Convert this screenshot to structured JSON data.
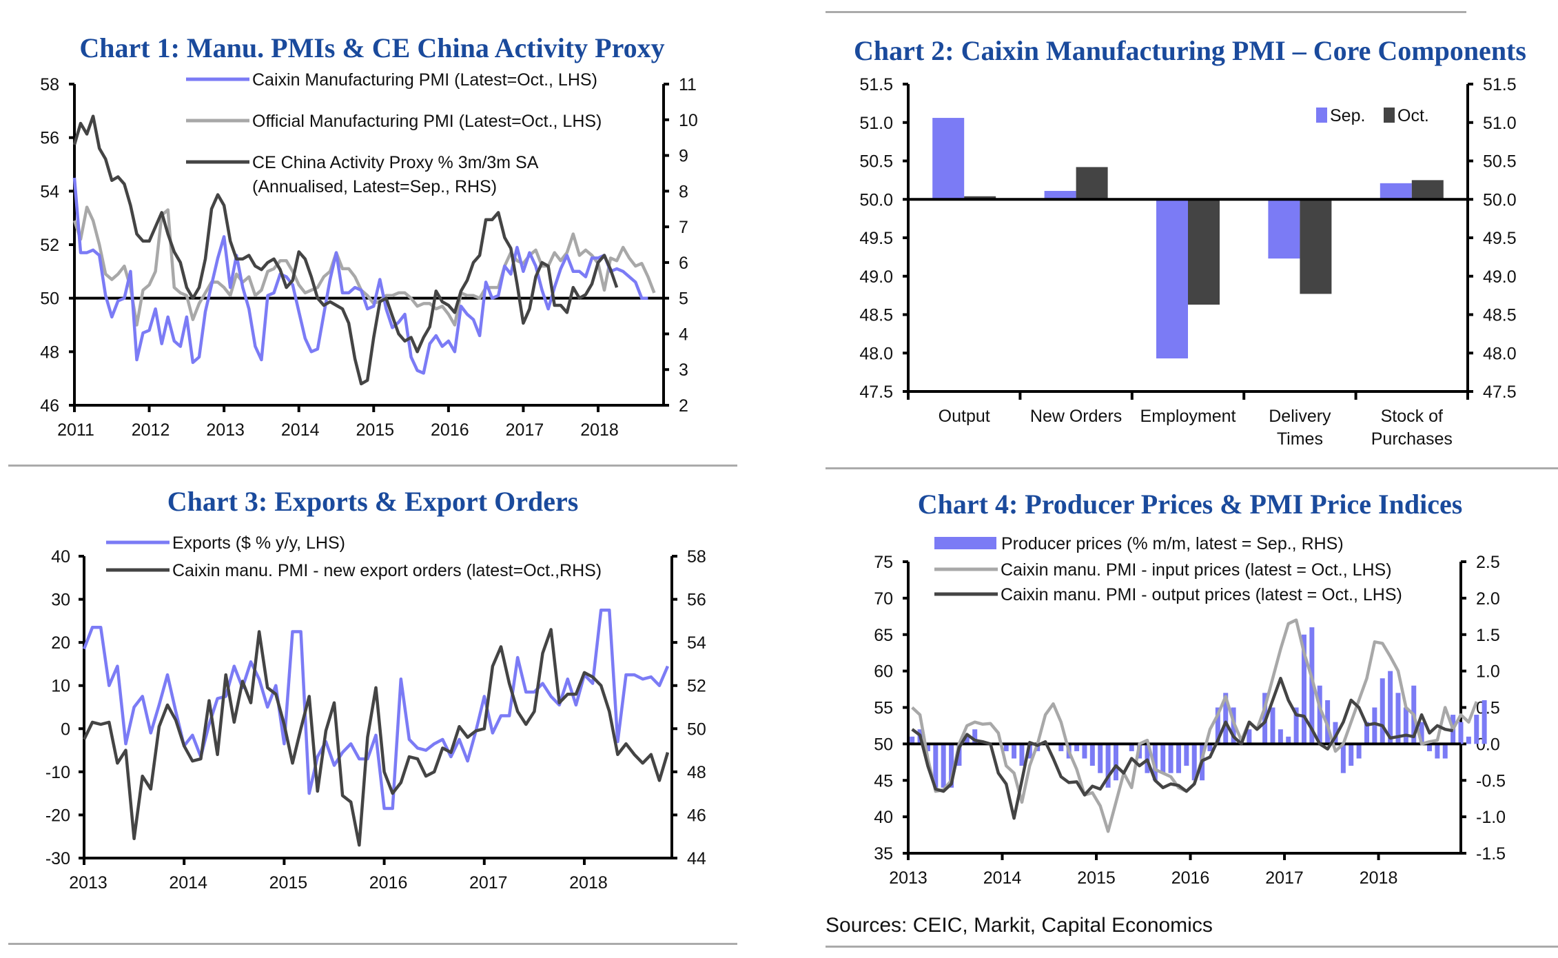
{
  "page": {
    "source": "Sources: CEIC, Markit, Capital Economics",
    "colors": {
      "title": "#1a4a9c",
      "blue": "#7b7bf5",
      "light_grey": "#a8a8a8",
      "dark_grey": "#444444",
      "axis": "#000000"
    }
  },
  "chart_data": [
    {
      "id": "chart1",
      "type": "line",
      "title": "Chart 1: Manu. PMIs & CE China Activity Proxy",
      "xlabel": "",
      "x_start": "2011-01",
      "x_ticks": [
        "2011",
        "2012",
        "2013",
        "2014",
        "2015",
        "2016",
        "2017",
        "2018"
      ],
      "y_left": {
        "range": [
          46,
          58
        ],
        "ticks": [
          "46",
          "48",
          "50",
          "52",
          "54",
          "56",
          "58"
        ]
      },
      "y_right": {
        "range": [
          2,
          11
        ],
        "ticks": [
          "2",
          "3",
          "4",
          "5",
          "6",
          "7",
          "8",
          "9",
          "10",
          "11"
        ]
      },
      "reference_line": 50,
      "legend_position": "top",
      "series": [
        {
          "name": "Caixin Manufacturing PMI (Latest=Oct., LHS)",
          "axis": "left",
          "color": "#7b7bf5",
          "values": [
            54.5,
            51.7,
            51.7,
            51.8,
            51.6,
            50.1,
            49.3,
            49.9,
            50.0,
            51.0,
            47.7,
            48.7,
            48.8,
            49.6,
            48.3,
            49.3,
            48.4,
            48.2,
            49.3,
            47.6,
            47.8,
            49.5,
            50.5,
            51.5,
            52.3,
            50.4,
            51.6,
            50.4,
            49.6,
            48.2,
            47.7,
            50.1,
            50.2,
            50.9,
            50.8,
            50.5,
            49.5,
            48.5,
            48.0,
            48.1,
            49.4,
            50.7,
            51.7,
            50.2,
            50.2,
            50.4,
            50.3,
            49.6,
            49.7,
            50.7,
            49.6,
            48.9,
            49.1,
            49.4,
            47.8,
            47.3,
            47.2,
            48.3,
            48.6,
            48.2,
            48.4,
            48.0,
            49.7,
            49.4,
            49.2,
            48.6,
            50.6,
            50.0,
            50.1,
            51.2,
            50.9,
            51.9,
            51.0,
            51.7,
            51.2,
            50.3,
            49.6,
            50.4,
            51.1,
            51.6,
            51.0,
            51.0,
            50.8,
            51.5,
            51.5,
            51.6,
            51.0,
            51.1,
            51.0,
            50.8,
            50.6,
            50.0,
            50.0
          ],
          "label": "Caixin Manufacturing PMI (Latest=Oct., LHS)"
        },
        {
          "name": "Official Manufacturing PMI (Latest=Oct., LHS)",
          "axis": "left",
          "color": "#a8a8a8",
          "values": [
            52.9,
            52.2,
            53.4,
            52.9,
            52.0,
            50.9,
            50.7,
            50.9,
            51.2,
            50.4,
            49.0,
            50.3,
            50.5,
            51.0,
            53.1,
            53.3,
            50.4,
            50.2,
            50.1,
            49.2,
            49.8,
            50.2,
            50.6,
            50.6,
            50.4,
            50.1,
            50.9,
            50.6,
            50.8,
            50.1,
            50.3,
            51.0,
            51.1,
            51.4,
            51.4,
            51.0,
            50.5,
            50.2,
            50.3,
            50.4,
            50.8,
            51.0,
            51.7,
            51.1,
            51.1,
            50.8,
            50.3,
            50.1,
            49.8,
            49.9,
            50.1,
            50.1,
            50.2,
            50.2,
            50.0,
            49.7,
            49.8,
            49.8,
            49.6,
            49.7,
            49.4,
            49.0,
            50.2,
            50.1,
            50.1,
            50.0,
            50.4,
            50.4,
            50.4,
            51.2,
            51.7,
            51.4,
            51.3,
            51.6,
            51.8,
            51.2,
            51.2,
            51.7,
            51.4,
            51.7,
            52.4,
            51.6,
            51.8,
            51.6,
            51.3,
            50.3,
            51.5,
            51.4,
            51.9,
            51.5,
            51.2,
            51.3,
            50.8,
            50.2
          ],
          "label": "Official Manufacturing PMI (Latest=Oct., LHS)"
        },
        {
          "name": "CE China Activity Proxy % 3m/3m SA (Annualised, Latest=Sep., RHS)",
          "axis": "right",
          "color": "#444444",
          "values": [
            9.3,
            9.9,
            9.6,
            10.1,
            9.2,
            8.9,
            8.3,
            8.4,
            8.2,
            7.6,
            6.8,
            6.6,
            6.6,
            7.0,
            7.4,
            6.8,
            6.3,
            6.0,
            5.3,
            5.0,
            5.3,
            6.1,
            7.5,
            7.9,
            7.6,
            6.6,
            6.1,
            6.1,
            6.2,
            5.9,
            5.8,
            6.0,
            6.1,
            5.8,
            5.3,
            5.5,
            6.3,
            6.1,
            5.6,
            5.0,
            4.8,
            4.9,
            4.8,
            4.7,
            4.3,
            3.3,
            2.6,
            2.7,
            3.9,
            4.9,
            5.0,
            4.5,
            4.0,
            3.8,
            3.9,
            3.5,
            3.9,
            4.2,
            5.2,
            4.9,
            4.8,
            4.6,
            5.2,
            5.5,
            6.0,
            6.2,
            7.2,
            7.2,
            7.4,
            6.7,
            6.4,
            5.4,
            4.3,
            4.7,
            5.6,
            6.0,
            5.9,
            4.8,
            4.8,
            4.6,
            5.3,
            5.0,
            5.1,
            5.4,
            6.0,
            6.2,
            5.8,
            5.3
          ],
          "label": "CE China Activity Proxy % 3m/3m SA",
          "label2": "(Annualised, Latest=Sep., RHS)"
        }
      ]
    },
    {
      "id": "chart2",
      "type": "bar",
      "title": "Chart 2: Caixin Manufacturing PMI – Core Components",
      "categories": [
        "Output",
        "New Orders",
        "Employment",
        "Delivery Times",
        "Stock of Purchases"
      ],
      "category_lines": [
        [
          "Output"
        ],
        [
          "New Orders"
        ],
        [
          "Employment"
        ],
        [
          "Delivery",
          "Times"
        ],
        [
          "Stock of",
          "Purchases"
        ]
      ],
      "baseline": 50.0,
      "ylim": [
        47.5,
        51.5
      ],
      "y_ticks": [
        "47.5",
        "48.0",
        "48.5",
        "49.0",
        "49.5",
        "50.0",
        "50.5",
        "51.0",
        "51.5"
      ],
      "legend_position": "top-right",
      "series": [
        {
          "name": "Sep.",
          "color": "#7b7bf5",
          "values": [
            51.06,
            50.11,
            47.93,
            49.23,
            50.21
          ]
        },
        {
          "name": "Oct.",
          "color": "#444444",
          "values": [
            50.04,
            50.42,
            48.63,
            48.77,
            50.25
          ]
        }
      ]
    },
    {
      "id": "chart3",
      "type": "line",
      "title": "Chart 3: Exports & Export Orders",
      "x_start": "2013-01",
      "x_ticks": [
        "2013",
        "2014",
        "2015",
        "2016",
        "2017",
        "2018"
      ],
      "y_left": {
        "range": [
          -30,
          40
        ],
        "ticks": [
          "-30",
          "-20",
          "-10",
          "0",
          "10",
          "20",
          "30",
          "40"
        ]
      },
      "y_right": {
        "range": [
          44,
          58
        ],
        "ticks": [
          "44",
          "46",
          "48",
          "50",
          "52",
          "54",
          "56",
          "58"
        ]
      },
      "legend_position": "top-left",
      "series": [
        {
          "name": "Exports ($ % y/y, LHS)",
          "axis": "left",
          "color": "#7b7bf5",
          "values": [
            18.5,
            23.5,
            23.5,
            10.0,
            14.5,
            -3.5,
            5.0,
            7.5,
            -1.0,
            5.5,
            12.5,
            4.0,
            -4.0,
            -1.5,
            -6.5,
            1.0,
            7.0,
            7.5,
            14.5,
            9.5,
            15.5,
            11.5,
            5.0,
            10.0,
            -3.5,
            22.5,
            22.5,
            -15.0,
            -6.5,
            -3.0,
            -8.5,
            -5.5,
            -3.5,
            -7.0,
            -7.0,
            -1.5,
            -18.5,
            -18.5,
            11.5,
            -2.5,
            -4.5,
            -5.0,
            -3.5,
            -2.5,
            -6.5,
            -2.5,
            -7.5,
            -0.5,
            7.5,
            -1.0,
            3.0,
            3.0,
            16.5,
            8.5,
            8.5,
            10.5,
            7.5,
            5.5,
            11.5,
            5.5,
            12.5,
            10.5,
            27.5,
            27.5,
            -3.0,
            12.5,
            12.5,
            11.5,
            12.0,
            10.0,
            14.5
          ]
        },
        {
          "name": "Caixin manu. PMI - new export orders (latest=Oct.,RHS)",
          "axis": "right",
          "color": "#444444",
          "values": [
            49.5,
            50.3,
            50.2,
            50.3,
            48.4,
            49.0,
            44.9,
            47.8,
            47.2,
            50.1,
            51.1,
            50.4,
            49.2,
            48.5,
            48.6,
            51.3,
            48.8,
            52.5,
            50.3,
            52.2,
            51.2,
            54.5,
            51.9,
            51.6,
            50.2,
            48.4,
            50.0,
            51.5,
            47.1,
            49.9,
            51.2,
            46.9,
            46.6,
            44.6,
            49.6,
            51.9,
            48.0,
            47.0,
            47.5,
            48.7,
            48.6,
            47.8,
            48.0,
            49.1,
            48.9,
            50.1,
            49.6,
            49.9,
            50.0,
            52.9,
            53.8,
            52.1,
            50.8,
            50.2,
            50.8,
            53.5,
            54.6,
            51.2,
            51.6,
            51.6,
            52.6,
            52.4,
            52.0,
            50.8,
            48.8,
            49.3,
            48.8,
            48.4,
            48.8,
            47.6,
            48.9
          ]
        }
      ]
    },
    {
      "id": "chart4",
      "type": "bar+line",
      "title": "Chart 4: Producer Prices & PMI Price Indices",
      "x_start": "2013-01",
      "x_ticks": [
        "2013",
        "2014",
        "2015",
        "2016",
        "2017",
        "2018"
      ],
      "y_left": {
        "range": [
          35,
          75
        ],
        "ticks": [
          "35",
          "40",
          "45",
          "50",
          "55",
          "60",
          "65",
          "70",
          "75"
        ]
      },
      "y_right": {
        "range": [
          -1.5,
          2.5
        ],
        "ticks": [
          "-1.5",
          "-1.0",
          "-0.5",
          "0.0",
          "0.5",
          "1.0",
          "1.5",
          "2.0",
          "2.5"
        ]
      },
      "reference_line_left": 50,
      "legend_position": "top",
      "series": [
        {
          "name": "Producer prices (% m/m, latest = Sep., RHS)",
          "type": "bar",
          "axis": "right",
          "color": "#7b7bf5",
          "values": [
            0.1,
            0.2,
            -0.1,
            -0.6,
            -0.6,
            -0.6,
            -0.3,
            0.1,
            0.2,
            0.0,
            0.0,
            0.0,
            -0.1,
            -0.2,
            -0.3,
            -0.2,
            -0.1,
            0.0,
            0.0,
            -0.1,
            -0.2,
            -0.1,
            -0.2,
            -0.3,
            -0.4,
            -0.6,
            -0.5,
            0.0,
            -0.1,
            -0.2,
            -0.4,
            -0.5,
            -0.4,
            -0.4,
            -0.4,
            -0.3,
            -0.5,
            -0.5,
            -0.1,
            0.5,
            0.7,
            0.5,
            0.1,
            0.2,
            0.0,
            0.7,
            0.5,
            0.2,
            0.1,
            0.5,
            1.5,
            1.6,
            0.8,
            0.6,
            0.3,
            -0.4,
            -0.3,
            -0.2,
            0.3,
            0.5,
            0.9,
            1.0,
            0.7,
            0.5,
            0.8,
            0.3,
            -0.1,
            -0.2,
            -0.2,
            0.4,
            0.3,
            0.1,
            0.4,
            0.6
          ]
        },
        {
          "name": "Caixin manu. PMI - input prices (latest = Oct., LHS)",
          "type": "line",
          "axis": "left",
          "color": "#a8a8a8",
          "values": [
            55.0,
            54.0,
            48.0,
            43.5,
            43.7,
            45.0,
            50.0,
            52.5,
            53.0,
            52.7,
            52.8,
            51.5,
            47.0,
            46.0,
            42.0,
            47.0,
            50.0,
            54.0,
            55.5,
            53.0,
            49.0,
            46.5,
            43.0,
            43.3,
            41.5,
            38.0,
            42.0,
            46.0,
            44.0,
            50.0,
            50.5,
            46.5,
            46.0,
            45.5,
            44.0,
            43.5,
            44.5,
            48.0,
            52.0,
            54.0,
            56.5,
            53.0,
            50.5,
            53.0,
            52.0,
            55.0,
            59.0,
            63.0,
            66.5,
            67.0,
            62.5,
            59.0,
            55.0,
            52.5,
            49.0,
            50.0,
            53.0,
            56.0,
            59.0,
            64.0,
            63.8,
            62.0,
            60.0,
            55.0,
            54.0,
            50.0,
            50.3,
            50.5,
            55.0,
            52.0,
            54.0,
            53.0,
            55.8
          ]
        },
        {
          "name": "Caixin manu. PMI - output prices (latest = Oct., LHS)",
          "type": "line",
          "axis": "left",
          "color": "#444444",
          "values": [
            52.0,
            51.2,
            47.0,
            43.8,
            43.5,
            44.5,
            49.5,
            51.3,
            50.5,
            50.3,
            50.0,
            46.0,
            44.5,
            39.8,
            45.0,
            50.2,
            49.8,
            50.3,
            48.0,
            45.5,
            44.7,
            44.8,
            43.0,
            44.2,
            43.8,
            45.5,
            47.0,
            46.0,
            48.0,
            47.0,
            47.8,
            45.0,
            44.0,
            44.5,
            44.3,
            43.5,
            44.5,
            47.7,
            48.2,
            50.5,
            53.0,
            51.0,
            50.0,
            53.0,
            52.0,
            53.0,
            56.0,
            59.0,
            56.0,
            54.0,
            53.8,
            52.0,
            50.0,
            49.3,
            51.0,
            53.0,
            56.0,
            55.0,
            52.6,
            52.8,
            52.5,
            50.8,
            51.0,
            51.2,
            51.0,
            54.0,
            51.5,
            52.5,
            52.0,
            51.8
          ]
        }
      ]
    }
  ]
}
